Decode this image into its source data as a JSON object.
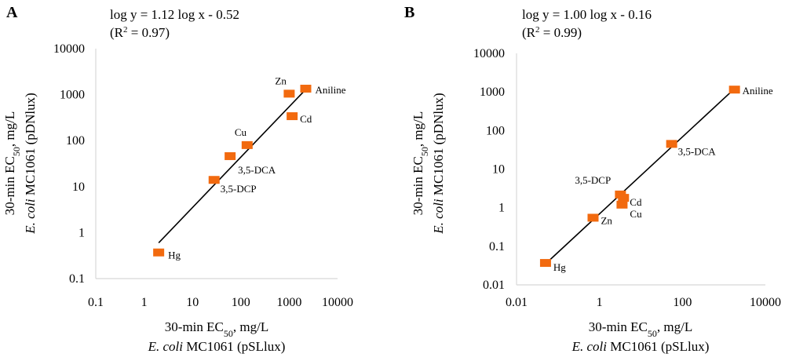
{
  "chart_data": [
    {
      "type": "scatter",
      "panel_label": "A",
      "equation": "log y = 1.12 log x - 0.52",
      "r2_prefix": "(R",
      "r2_sup": "2",
      "r2_suffix": " = 0.97)",
      "log_scale": true,
      "xlim": [
        0.1,
        10000
      ],
      "ylim": [
        0.1,
        10000
      ],
      "x_ticks": [
        "0.1",
        "1",
        "10",
        "100",
        "1000",
        "10000"
      ],
      "y_ticks": [
        "0.1",
        "1",
        "10",
        "100",
        "1000",
        "10000"
      ],
      "xlabel": {
        "pre": "30-min EC",
        "sub": "50",
        "post": ", mg/L",
        "line2_italic": "E. coli",
        "line2_rest": " MC1061 (pSLlux)"
      },
      "ylabel": {
        "pre": "30-min EC",
        "sub": "50",
        "post": ", mg/L",
        "line2_italic": "E. coli",
        "line2_rest": " MC1061 (pDNlux)"
      },
      "points": [
        {
          "label": "Hg",
          "x": 2,
          "y": 0.37
        },
        {
          "label": "3,5-DCP",
          "x": 28,
          "y": 14
        },
        {
          "label": "3,5-DCA",
          "x": 60,
          "y": 46
        },
        {
          "label": "Cu",
          "x": 135,
          "y": 80
        },
        {
          "label": "Zn",
          "x": 1000,
          "y": 1050
        },
        {
          "label": "Cd",
          "x": 1150,
          "y": 340
        },
        {
          "label": "Aniline",
          "x": 2200,
          "y": 1350
        }
      ],
      "fit": {
        "x": [
          2,
          2200
        ],
        "y": [
          0.6,
          1300
        ]
      },
      "color": "#f26a0f"
    },
    {
      "type": "scatter",
      "panel_label": "B",
      "equation": "log y = 1.00 log x - 0.16",
      "r2_prefix": "(R",
      "r2_sup": "2",
      "r2_suffix": " = 0.99)",
      "log_scale": true,
      "xlim": [
        0.01,
        10000
      ],
      "ylim": [
        0.01,
        10000
      ],
      "x_ticks": [
        "0.01",
        "1",
        "100",
        "10000"
      ],
      "y_ticks": [
        "0.01",
        "0.1",
        "1",
        "10",
        "100",
        "1000",
        "10000"
      ],
      "xlabel": {
        "pre": "30-min EC",
        "sub": "50",
        "post": ", mg/L",
        "line2_italic": "E. coli",
        "line2_rest": " MC1061 (pSLlux)"
      },
      "ylabel": {
        "pre": "30-min EC",
        "sub": "50",
        "post": ", mg/L",
        "line2_italic": "E. coli",
        "line2_rest": " MC1061 (pDNlux)"
      },
      "points": [
        {
          "label": "Hg",
          "x": 0.05,
          "y": 0.037
        },
        {
          "label": "Zn",
          "x": 0.7,
          "y": 0.55
        },
        {
          "label": "Cu",
          "x": 3.5,
          "y": 1.2
        },
        {
          "label": "Cd",
          "x": 3.8,
          "y": 1.8
        },
        {
          "label": "3,5-DCP",
          "x": 3.2,
          "y": 2.2
        },
        {
          "label": "3,5-DCA",
          "x": 55,
          "y": 45
        },
        {
          "label": "Aniline",
          "x": 1800,
          "y": 1150
        }
      ],
      "fit": {
        "x": [
          0.05,
          1850
        ],
        "y": [
          0.035,
          1250
        ]
      },
      "color": "#f26a0f"
    }
  ]
}
